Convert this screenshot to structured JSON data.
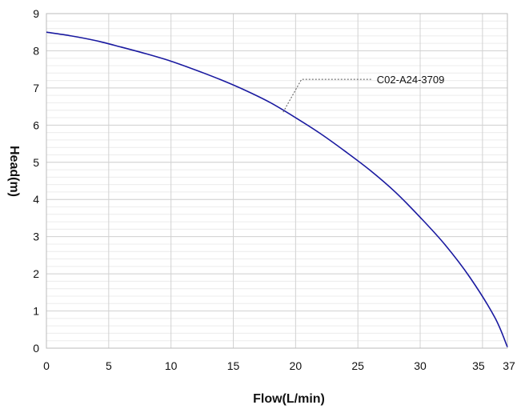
{
  "chart_data": {
    "type": "line",
    "title": "",
    "xlabel": "Flow(L/min)",
    "ylabel": "Head(m)",
    "xlim": [
      0,
      37
    ],
    "ylim": [
      0,
      9
    ],
    "xticks": [
      0,
      5,
      10,
      15,
      20,
      25,
      30,
      35,
      37
    ],
    "yticks": [
      0,
      1,
      2,
      3,
      4,
      5,
      6,
      7,
      8,
      9
    ],
    "grid": true,
    "series": [
      {
        "name": "C02-A24-3709",
        "color": "#1a1aa0",
        "x": [
          0,
          2,
          4,
          6,
          8,
          10,
          12,
          14,
          16,
          18,
          20,
          22,
          24,
          26,
          28,
          30,
          32,
          34,
          36,
          37
        ],
        "y": [
          8.5,
          8.4,
          8.27,
          8.1,
          7.92,
          7.72,
          7.48,
          7.22,
          6.93,
          6.6,
          6.2,
          5.77,
          5.29,
          4.78,
          4.2,
          3.52,
          2.78,
          1.9,
          0.82,
          0.03
        ]
      }
    ],
    "annotations": [
      {
        "text": "C02-A24-3709",
        "x": 19,
        "y": 6.35
      }
    ]
  }
}
